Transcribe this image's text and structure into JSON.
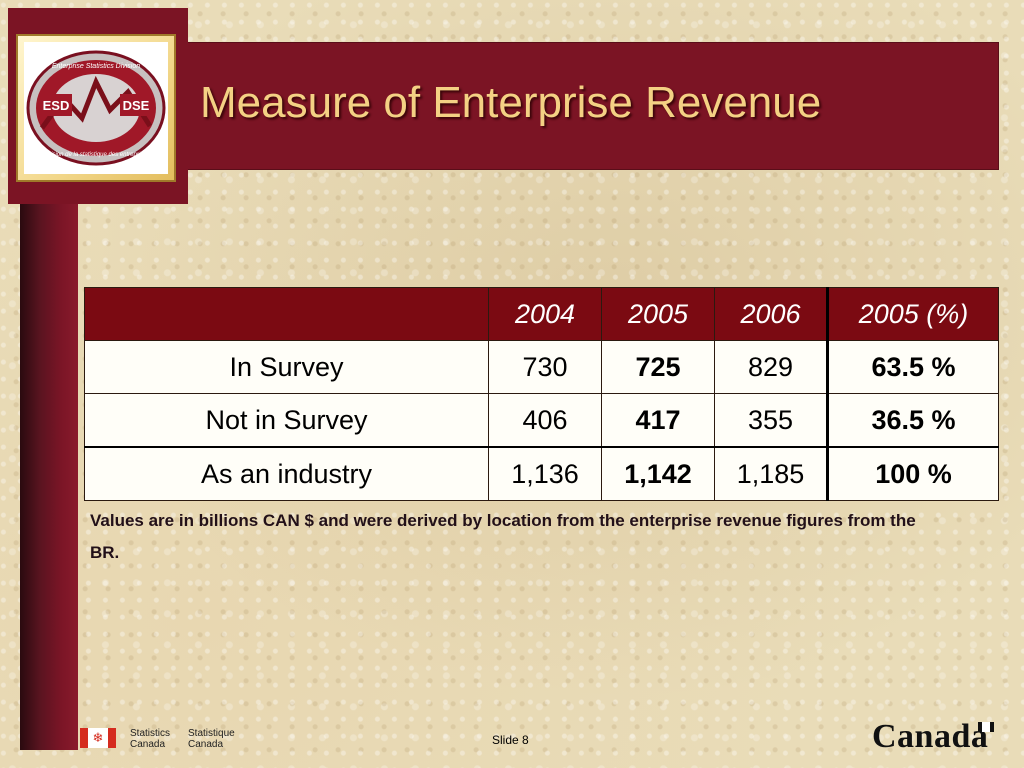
{
  "slide": {
    "title": "Measure of Enterprise Revenue",
    "note": "Values are in billions CAN $ and were derived by location from the enterprise revenue figures from the BR.",
    "slide_number": "Slide 8"
  },
  "logo": {
    "icon": "esd-dse-logo",
    "left_text": "ESD",
    "right_text": "DSE",
    "top_text": "Enterprise Statistics Division",
    "bottom_text": "Division de la statistique des entreprises"
  },
  "table": {
    "headers": [
      "",
      "2004",
      "2005",
      "2006",
      "2005 (%)"
    ],
    "rows": [
      {
        "label": "In Survey",
        "v2004": "730",
        "v2005": "725",
        "v2006": "829",
        "pct": "63.5 %"
      },
      {
        "label": "Not in Survey",
        "v2004": "406",
        "v2005": "417",
        "v2006": "355",
        "pct": "36.5 %"
      },
      {
        "label": "As an industry",
        "v2004": "1,136",
        "v2005": "1,142",
        "v2006": "1,185",
        "pct": "100 %"
      }
    ]
  },
  "footer": {
    "statcan_en_1": "Statistics",
    "statcan_en_2": "Canada",
    "statcan_fr_1": "Statistique",
    "statcan_fr_2": "Canada",
    "wordmark": "Canada"
  },
  "colors": {
    "maroon": "#7b1424",
    "header_red": "#7b0a12",
    "title_gold": "#f4d184"
  }
}
